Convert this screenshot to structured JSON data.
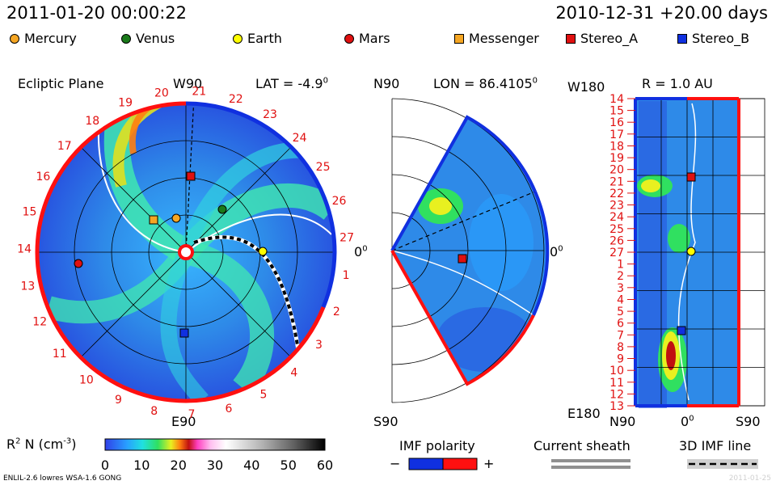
{
  "header": {
    "timestamp": "2011-01-20 00:00:22",
    "model_run": "2010-12-31 +20.00 days"
  },
  "legend": [
    {
      "label": "Mercury",
      "color": "#f5a623",
      "shape": "circle"
    },
    {
      "label": "Venus",
      "color": "#1a7a1a",
      "shape": "circle"
    },
    {
      "label": "Earth",
      "color": "#ffff00",
      "shape": "circle"
    },
    {
      "label": "Mars",
      "color": "#e01010",
      "shape": "circle"
    },
    {
      "label": "Messenger",
      "color": "#f5a623",
      "shape": "square"
    },
    {
      "label": "Stereo_A",
      "color": "#e01010",
      "shape": "square"
    },
    {
      "label": "Stereo_B",
      "color": "#1030e0",
      "shape": "square"
    }
  ],
  "panels": {
    "ecliptic": {
      "title": "Ecliptic Plane",
      "top_label": "W90",
      "bottom_label": "E90",
      "right_label": "0",
      "right_sup": "0",
      "lat_label": "LAT = -4.9",
      "lat_sup": "0",
      "sectors": [
        "19",
        "20",
        "21",
        "22",
        "23",
        "24",
        "25",
        "26",
        "27",
        "1",
        "2",
        "3",
        "4",
        "5",
        "6",
        "7",
        "8",
        "9",
        "10",
        "11",
        "12",
        "13",
        "14",
        "15",
        "16",
        "17",
        "18"
      ]
    },
    "meridional": {
      "top_label": "N90",
      "bottom_label": "S90",
      "right_label": "0",
      "right_sup": "0",
      "lon_label": "LON = 86.4105",
      "lon_sup": "0"
    },
    "radial": {
      "top_left_label": "W180",
      "bottom_left_label": "E180",
      "r_label": "R = 1.0 AU",
      "x_left": "N90",
      "x_mid": "0",
      "x_mid_sup": "0",
      "x_right": "S90",
      "rows": [
        "14",
        "15",
        "16",
        "17",
        "18",
        "19",
        "20",
        "21",
        "22",
        "23",
        "24",
        "25",
        "26",
        "27",
        "1",
        "2",
        "3",
        "4",
        "5",
        "6",
        "7",
        "8",
        "9",
        "10",
        "11",
        "12",
        "13"
      ]
    }
  },
  "colorbar": {
    "label": "R",
    "label_sup": "2",
    "label_rest": " N (cm",
    "label_unit_sup": "-3",
    "label_close": ")",
    "ticks": [
      "0",
      "10",
      "20",
      "30",
      "40",
      "50",
      "60"
    ]
  },
  "imf_polarity": {
    "title": "IMF polarity",
    "minus": "−",
    "plus": "+",
    "neg_color": "#1030e0",
    "pos_color": "#ff1010"
  },
  "current_sheath": {
    "title": "Current sheath"
  },
  "imf_line": {
    "title": "3D IMF line"
  },
  "footer": {
    "left": "ENLIL-2.6 lowres WSA-1.6 GONG",
    "right": "2011-01-25"
  }
}
